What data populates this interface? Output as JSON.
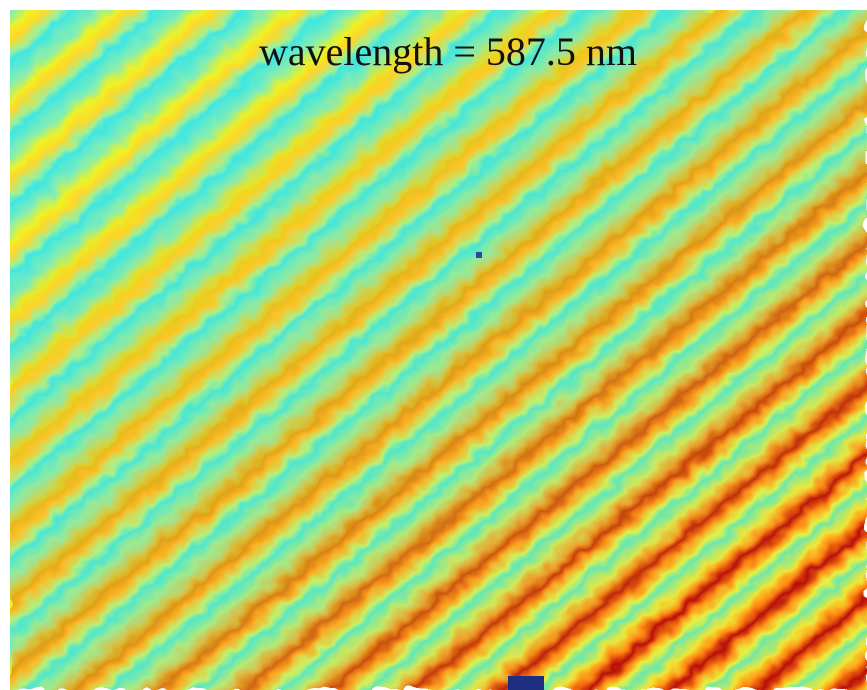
{
  "title": "wavelength = 587.5 nm"
}
